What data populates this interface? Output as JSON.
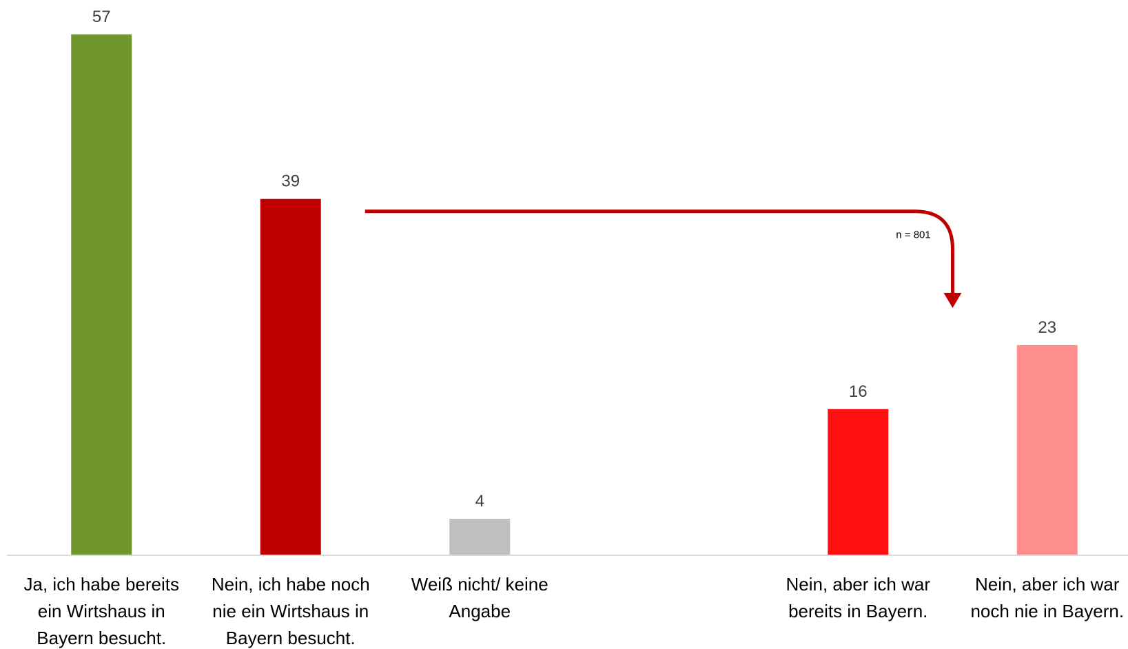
{
  "chart_data": {
    "type": "bar",
    "categories": [
      [
        "Ja, ich habe bereits",
        "ein Wirtshaus in",
        "Bayern besucht."
      ],
      [
        "Nein, ich habe noch",
        "nie ein Wirtshaus in",
        "Bayern besucht."
      ],
      [
        "Weiß nicht/ keine",
        "Angabe"
      ],
      [],
      [
        "Nein, aber ich war",
        "bereits in Bayern."
      ],
      [
        "Nein, aber ich war",
        "noch nie in Bayern."
      ]
    ],
    "values": [
      57,
      39,
      4,
      null,
      16,
      23
    ],
    "colors": [
      "#6f962a",
      "#c00000",
      "#bfbfbf",
      null,
      "#ff1010",
      "#ff8f8f"
    ],
    "value_labels": [
      "57",
      "39",
      "4",
      "",
      "16",
      "23"
    ],
    "ylim": [
      0,
      60
    ],
    "grid": false,
    "legend": "none",
    "title": "",
    "xlabel": "",
    "ylabel": "",
    "annotation": {
      "text": "n = 801",
      "arrow": {
        "from_category": 1,
        "to_category": 4,
        "color": "#c00000"
      }
    }
  }
}
